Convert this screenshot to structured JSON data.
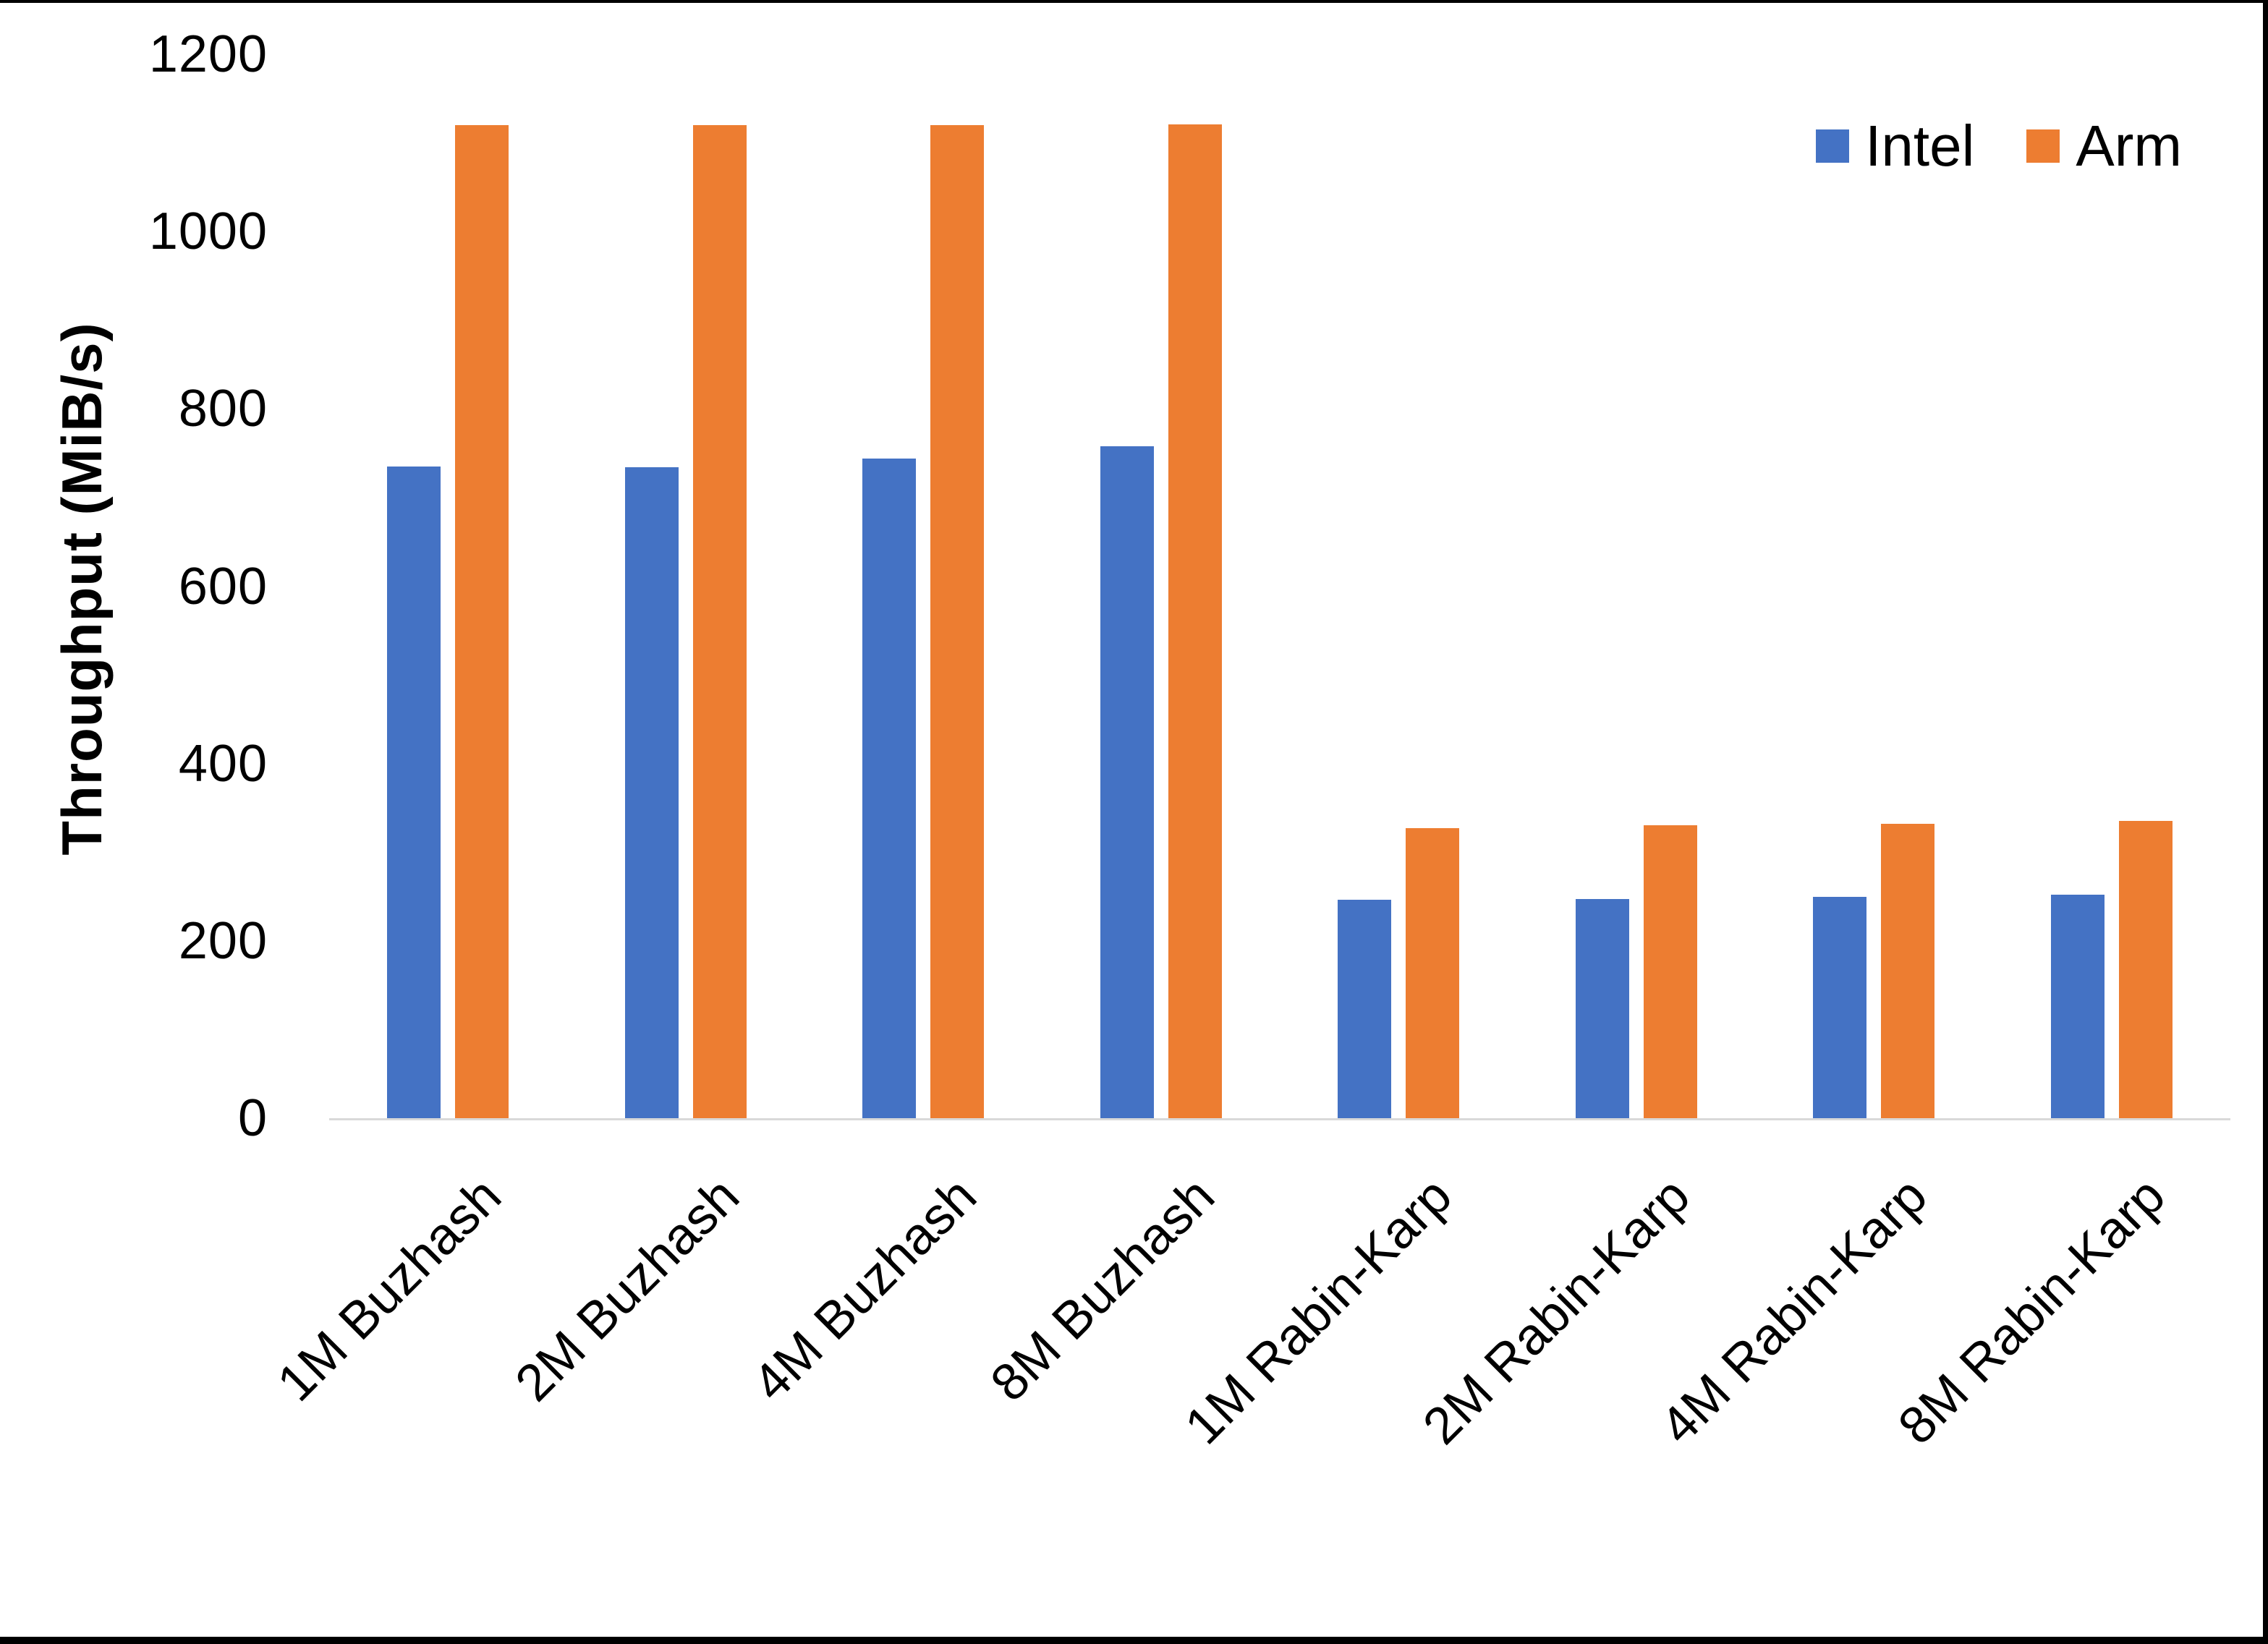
{
  "chart_data": {
    "type": "bar",
    "title": "",
    "categories": [
      "1M Buzhash",
      "2M Buzhash",
      "4M Buzhash",
      "8M Buzhash",
      "1M Rabin-Karp",
      "2M Rabin-Karp",
      "4M Rabin-Karp",
      "8M Rabin-Karp"
    ],
    "series": [
      {
        "name": "Intel",
        "color": "#4472C4",
        "values": [
          735,
          734,
          744,
          758,
          246,
          247,
          250,
          252
        ]
      },
      {
        "name": "Arm",
        "color": "#ED7D31",
        "values": [
          1120,
          1120,
          1120,
          1121,
          327,
          330,
          332,
          335
        ]
      }
    ],
    "xlabel": "",
    "ylabel": "Throughput (MiB/s)",
    "yticks": [
      0,
      200,
      400,
      600,
      800,
      1000,
      1200
    ],
    "ylim": [
      0,
      1200
    ],
    "grid": false,
    "legend_position": "top-right"
  },
  "colors": {
    "intel": "#4472C4",
    "arm": "#ED7D31",
    "axis_line": "#D9D9D9",
    "text": "#000000",
    "frame": "#000000"
  }
}
